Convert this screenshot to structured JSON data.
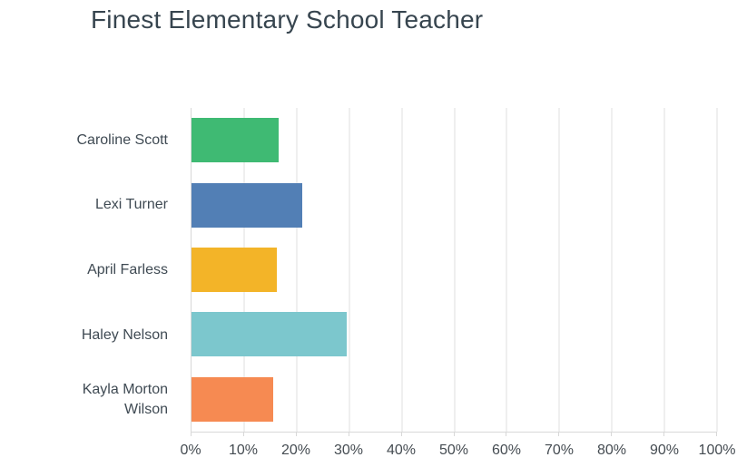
{
  "chart_data": {
    "type": "bar",
    "orientation": "horizontal",
    "title": "Finest Elementary School Teacher",
    "categories": [
      "Caroline Scott",
      "Lexi Turner",
      "April Farless",
      "Haley Nelson",
      "Kayla Morton Wilson"
    ],
    "values": [
      16.5,
      21.1,
      16.3,
      29.5,
      15.6
    ],
    "unit": "%",
    "bar_colors": [
      "#3fba73",
      "#527fb5",
      "#f3b428",
      "#7cc7cd",
      "#f68a52"
    ],
    "xticks": [
      "0%",
      "10%",
      "20%",
      "30%",
      "40%",
      "50%",
      "60%",
      "70%",
      "80%",
      "90%",
      "100%"
    ],
    "xlim": [
      0,
      100
    ],
    "grid": true,
    "legend": false,
    "colors": {
      "title_text": "#37454f",
      "category_text": "#3f4a53",
      "tick_text": "#454c52",
      "axis_line": "#d8d8d8",
      "gridline": "#efefef",
      "background": "#ffffff"
    }
  }
}
